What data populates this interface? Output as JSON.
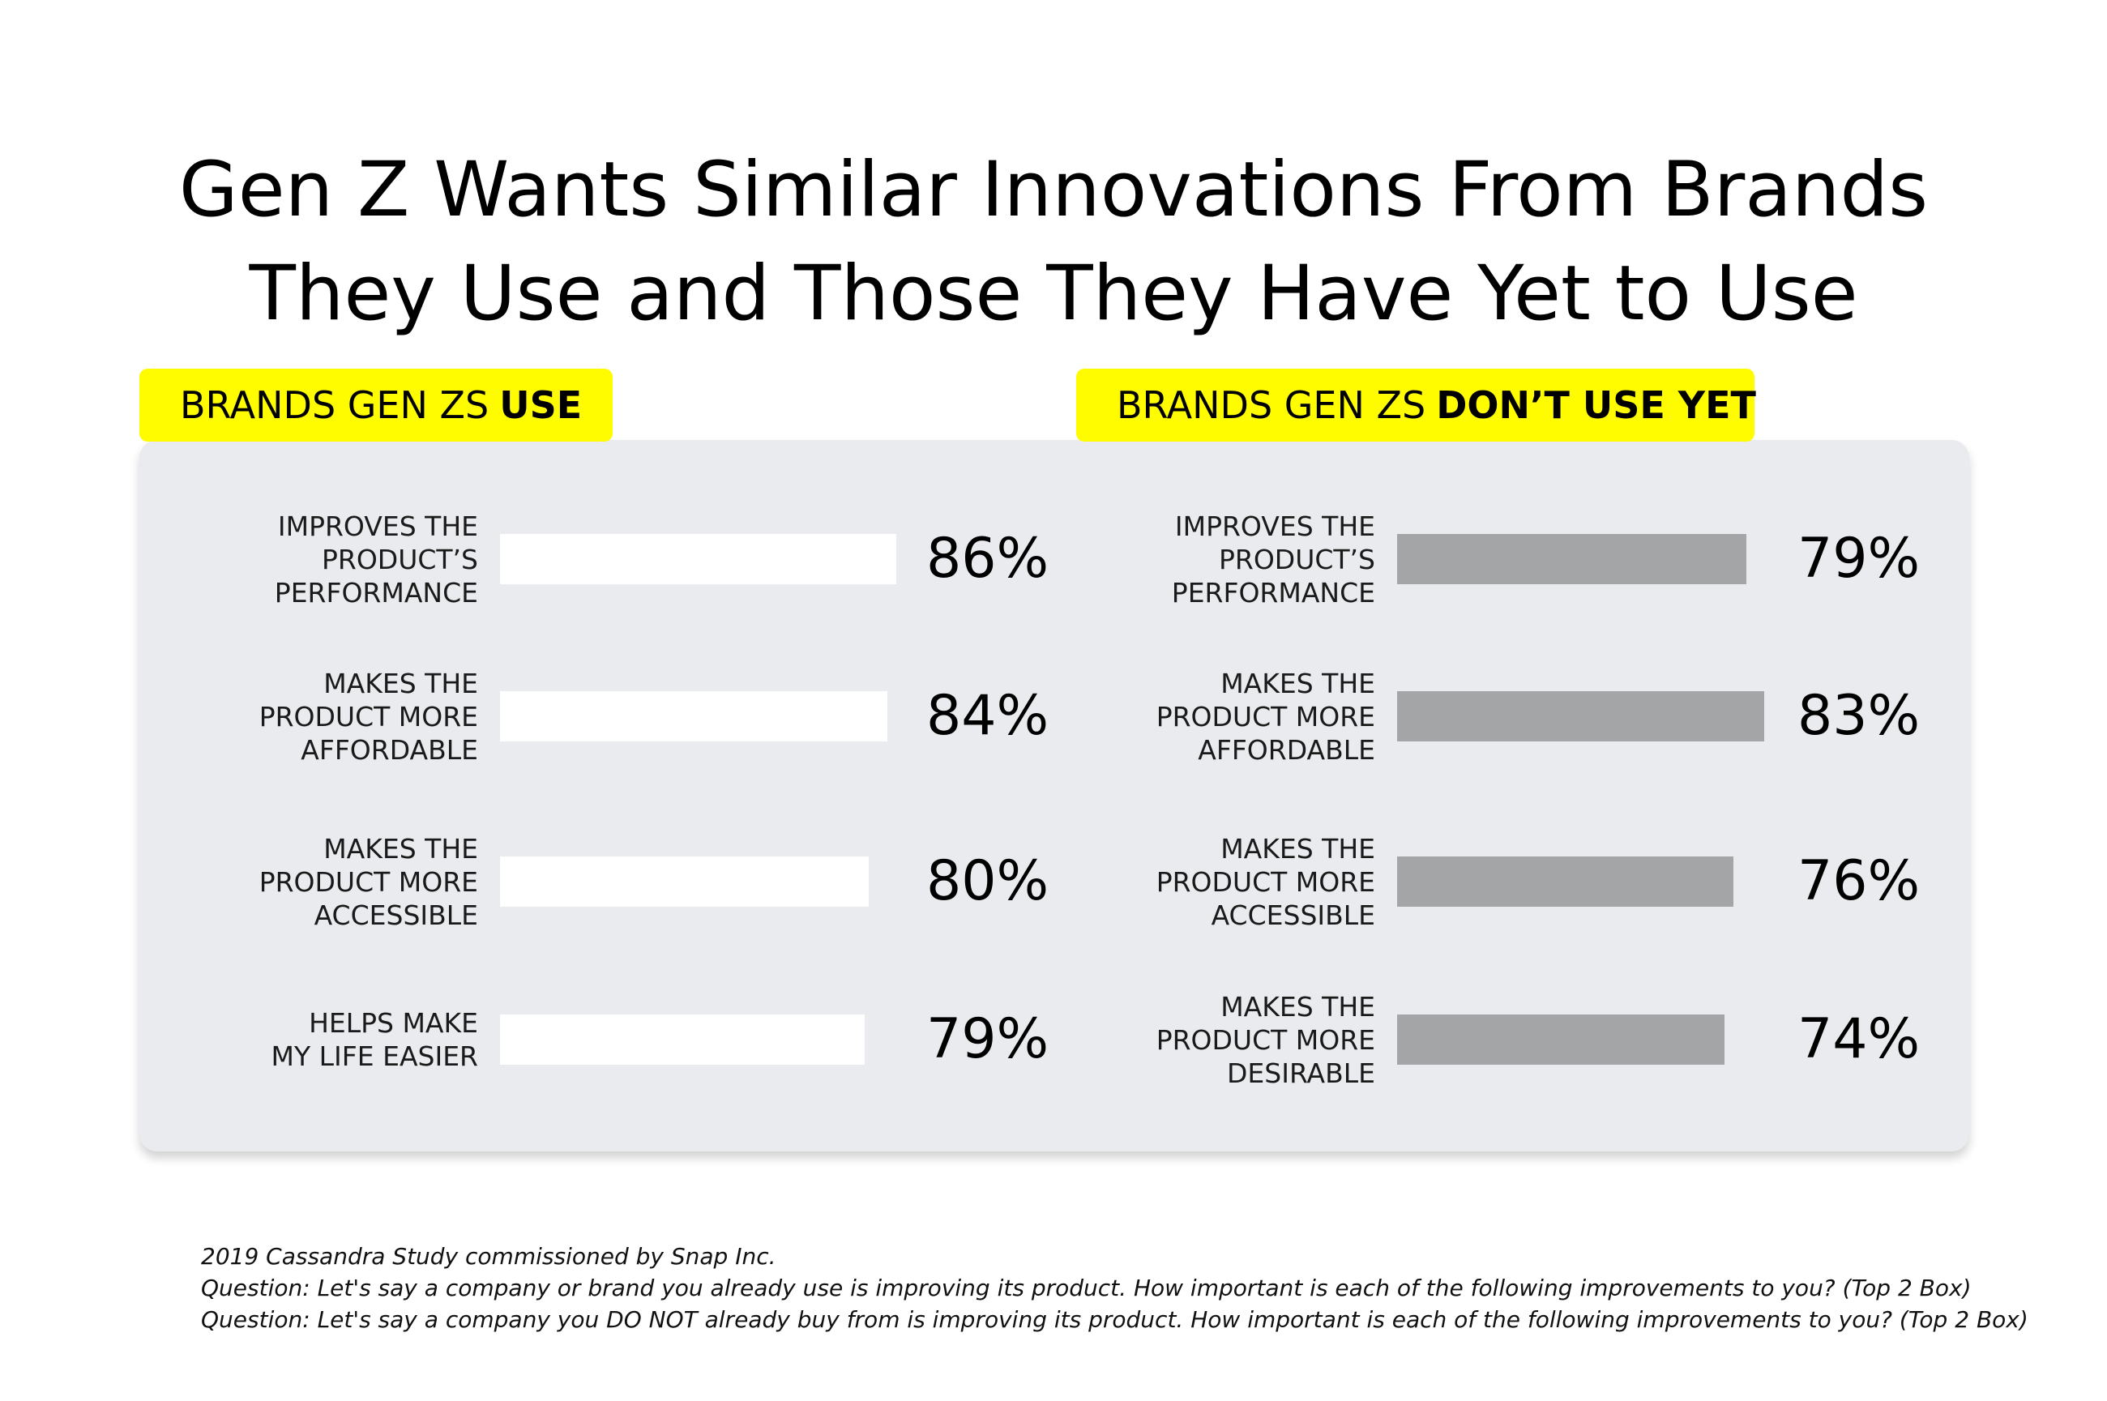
{
  "title": {
    "line1": "Gen Z Wants Similar Innovations From Brands",
    "line2": "They Use and Those They Have Yet to Use"
  },
  "chart_data": [
    {
      "type": "bar",
      "orientation": "horizontal",
      "title_prefix": "BRANDS GEN ZS",
      "title_emphasis": "USE",
      "color": "#ffffff",
      "categories": [
        [
          "IMPROVES THE",
          "PRODUCT’S",
          "PERFORMANCE"
        ],
        [
          "MAKES THE",
          "PRODUCT MORE",
          "AFFORDABLE"
        ],
        [
          "MAKES THE",
          "PRODUCT MORE",
          "ACCESSIBLE"
        ],
        [
          "HELPS MAKE",
          "MY LIFE EASIER"
        ]
      ],
      "values": [
        86,
        84,
        80,
        79
      ],
      "value_labels": [
        "86%",
        "84%",
        "80%",
        "79%"
      ],
      "unit": "%"
    },
    {
      "type": "bar",
      "orientation": "horizontal",
      "title_prefix": "BRANDS GEN ZS",
      "title_emphasis": "DON’T USE YET",
      "color": "#a4a5a7",
      "categories": [
        [
          "IMPROVES THE",
          "PRODUCT’S",
          "PERFORMANCE"
        ],
        [
          "MAKES THE",
          "PRODUCT MORE",
          "AFFORDABLE"
        ],
        [
          "MAKES THE",
          "PRODUCT MORE",
          "ACCESSIBLE"
        ],
        [
          "MAKES THE",
          "PRODUCT MORE",
          "DESIRABLE"
        ]
      ],
      "values": [
        79,
        83,
        76,
        74
      ],
      "value_labels": [
        "79%",
        "83%",
        "76%",
        "74%"
      ],
      "unit": "%"
    }
  ],
  "footnote": [
    "2019 Cassandra Study commissioned by Snap Inc.",
    "Question: Let's say a company or brand you already use is improving its product. How important is each of the following improvements to you? (Top 2 Box)",
    "Question: Let's say a company you DO NOT already buy from is improving its product. How important is each of the following improvements to you? (Top 2 Box)"
  ]
}
